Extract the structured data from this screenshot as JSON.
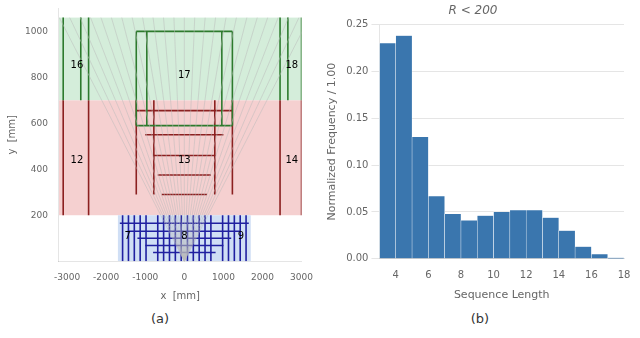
{
  "chart_data": [
    {
      "type": "line",
      "xlabel": "x  [mm]",
      "ylabel": "y  [mm]",
      "caption": "(a)",
      "xlim": [
        -3210,
        3000
      ],
      "ylim": [
        0,
        1100
      ],
      "xticks": [
        -3000,
        -2000,
        -1000,
        0,
        1000,
        2000,
        3000
      ],
      "yticks": [
        200,
        400,
        600,
        800,
        1000
      ],
      "grid": false,
      "regions": [
        {
          "xlim": [
            -3210,
            3000
          ],
          "ylim": [
            700,
            1060
          ],
          "color": "#d4edda"
        },
        {
          "xlim": [
            -3210,
            3000
          ],
          "ylim": [
            200,
            700
          ],
          "color": "#f5d0d0"
        },
        {
          "xlim": [
            -1700,
            1700
          ],
          "ylim": [
            0,
            200
          ],
          "color": "#d0dff5"
        }
      ],
      "series": [
        {
          "color": "#bbbbbb",
          "line_style": "thin",
          "segments": [
            {
              "x": [
                0,
                -3200
              ],
              "y": [
                0,
                1060
              ]
            },
            {
              "x": [
                0,
                -2933.333333333333
              ],
              "y": [
                0,
                1060
              ]
            },
            {
              "x": [
                0,
                -2666.6666666666665
              ],
              "y": [
                0,
                1060
              ]
            },
            {
              "x": [
                0,
                -2400
              ],
              "y": [
                0,
                1060
              ]
            },
            {
              "x": [
                0,
                -2133.3333333333335
              ],
              "y": [
                0,
                1060
              ]
            },
            {
              "x": [
                0,
                -1866.6666666666667
              ],
              "y": [
                0,
                1060
              ]
            },
            {
              "x": [
                0,
                -1600
              ],
              "y": [
                0,
                1060
              ]
            },
            {
              "x": [
                0,
                -1333.3333333333333
              ],
              "y": [
                0,
                1060
              ]
            },
            {
              "x": [
                0,
                -1066.6666666666667
              ],
              "y": [
                0,
                1060
              ]
            },
            {
              "x": [
                0,
                -800
              ],
              "y": [
                0,
                1060
              ]
            },
            {
              "x": [
                0,
                -533.3333333333334
              ],
              "y": [
                0,
                1060
              ]
            },
            {
              "x": [
                0,
                -266.6666666666667
              ],
              "y": [
                0,
                1060
              ]
            },
            {
              "x": [
                0,
                0
              ],
              "y": [
                0,
                1060
              ]
            },
            {
              "x": [
                0,
                266.6666666666667
              ],
              "y": [
                0,
                1060
              ]
            },
            {
              "x": [
                0,
                533.3333333333334
              ],
              "y": [
                0,
                1060
              ]
            },
            {
              "x": [
                0,
                800
              ],
              "y": [
                0,
                1060
              ]
            },
            {
              "x": [
                0,
                1066.6666666666667
              ],
              "y": [
                0,
                1060
              ]
            },
            {
              "x": [
                0,
                1333.3333333333333
              ],
              "y": [
                0,
                1060
              ]
            },
            {
              "x": [
                0,
                1600
              ],
              "y": [
                0,
                1060
              ]
            },
            {
              "x": [
                0,
                1866.6666666666667
              ],
              "y": [
                0,
                1060
              ]
            },
            {
              "x": [
                0,
                2133.3333333333335
              ],
              "y": [
                0,
                1060
              ]
            },
            {
              "x": [
                0,
                2400
              ],
              "y": [
                0,
                1060
              ]
            },
            {
              "x": [
                0,
                2666.6666666666665
              ],
              "y": [
                0,
                1060
              ]
            },
            {
              "x": [
                0,
                2933.333333333333
              ],
              "y": [
                0,
                1060
              ]
            },
            {
              "x": [
                0,
                3200
              ],
              "y": [
                0,
                1060
              ]
            }
          ]
        },
        {
          "color": "#2d7a2d",
          "line_style": "solid",
          "segments": [
            {
              "x": [
                -3100,
                -3100
              ],
              "y": [
                700,
                1060
              ]
            },
            {
              "x": [
                -2650,
                -2650
              ],
              "y": [
                700,
                1060
              ]
            },
            {
              "x": [
                -2450,
                -2450
              ],
              "y": [
                700,
                1060
              ]
            },
            {
              "x": [
                -1230,
                -1230
              ],
              "y": [
                590,
                1000
              ]
            },
            {
              "x": [
                -960,
                -960
              ],
              "y": [
                590,
                1000
              ]
            },
            {
              "x": [
                960,
                960
              ],
              "y": [
                590,
                1000
              ]
            },
            {
              "x": [
                1230,
                1230
              ],
              "y": [
                590,
                1000
              ]
            },
            {
              "x": [
                2450,
                2450
              ],
              "y": [
                700,
                1060
              ]
            },
            {
              "x": [
                2650,
                2650
              ],
              "y": [
                700,
                1060
              ]
            },
            {
              "x": [
                3000,
                3000
              ],
              "y": [
                700,
                1060
              ]
            },
            {
              "x": [
                -1230,
                1230
              ],
              "y": [
                1000,
                1000
              ]
            },
            {
              "x": [
                -1230,
                1230
              ],
              "y": [
                590,
                590
              ]
            }
          ]
        },
        {
          "color": "#8b2020",
          "line_style": "solid",
          "segments": [
            {
              "x": [
                -3100,
                -3100
              ],
              "y": [
                200,
                700
              ]
            },
            {
              "x": [
                -2450,
                -2450
              ],
              "y": [
                200,
                700
              ]
            },
            {
              "x": [
                -1230,
                -1230
              ],
              "y": [
                290,
                700
              ]
            },
            {
              "x": [
                -780,
                -780
              ],
              "y": [
                290,
                700
              ]
            },
            {
              "x": [
                780,
                780
              ],
              "y": [
                290,
                700
              ]
            },
            {
              "x": [
                1230,
                1230
              ],
              "y": [
                290,
                700
              ]
            },
            {
              "x": [
                2450,
                2450
              ],
              "y": [
                200,
                700
              ]
            },
            {
              "x": [
                3000,
                3000
              ],
              "y": [
                200,
                700
              ]
            },
            {
              "x": [
                -1230,
                1230
              ],
              "y": [
                655,
                655
              ]
            },
            {
              "x": [
                -1000,
                1000
              ],
              "y": [
                550,
                550
              ]
            },
            {
              "x": [
                -800,
                800
              ],
              "y": [
                460,
                460
              ]
            },
            {
              "x": [
                -680,
                680
              ],
              "y": [
                375,
                375
              ]
            },
            {
              "x": [
                -580,
                580
              ],
              "y": [
                290,
                290
              ]
            }
          ]
        },
        {
          "color": "#2020a0",
          "line_style": "solid",
          "segments": [
            {
              "x": [
                -1580,
                -1580
              ],
              "y": [
                0,
                200
              ]
            },
            {
              "x": [
                -1430,
                -1430
              ],
              "y": [
                0,
                200
              ]
            },
            {
              "x": [
                -1280,
                -1280
              ],
              "y": [
                0,
                200
              ]
            },
            {
              "x": [
                -1130,
                -1130
              ],
              "y": [
                0,
                200
              ]
            },
            {
              "x": [
                -980,
                -980
              ],
              "y": [
                0,
                200
              ]
            },
            {
              "x": [
                -680,
                -680
              ],
              "y": [
                0,
                200
              ]
            },
            {
              "x": [
                -530,
                -530
              ],
              "y": [
                0,
                200
              ]
            },
            {
              "x": [
                -380,
                -380
              ],
              "y": [
                0,
                200
              ]
            },
            {
              "x": [
                -230,
                -230
              ],
              "y": [
                0,
                200
              ]
            },
            {
              "x": [
                -80,
                -80
              ],
              "y": [
                0,
                200
              ]
            },
            {
              "x": [
                80,
                80
              ],
              "y": [
                0,
                200
              ]
            },
            {
              "x": [
                230,
                230
              ],
              "y": [
                0,
                200
              ]
            },
            {
              "x": [
                380,
                380
              ],
              "y": [
                0,
                200
              ]
            },
            {
              "x": [
                530,
                530
              ],
              "y": [
                0,
                200
              ]
            },
            {
              "x": [
                680,
                680
              ],
              "y": [
                0,
                200
              ]
            },
            {
              "x": [
                980,
                980
              ],
              "y": [
                0,
                200
              ]
            },
            {
              "x": [
                1130,
                1130
              ],
              "y": [
                0,
                200
              ]
            },
            {
              "x": [
                1280,
                1280
              ],
              "y": [
                0,
                200
              ]
            },
            {
              "x": [
                1430,
                1430
              ],
              "y": [
                0,
                200
              ]
            },
            {
              "x": [
                1580,
                1580
              ],
              "y": [
                0,
                200
              ]
            },
            {
              "x": [
                -1650,
                1650
              ],
              "y": [
                165,
                165
              ]
            },
            {
              "x": [
                -1450,
                1450
              ],
              "y": [
                130,
                130
              ]
            },
            {
              "x": [
                -1200,
                1200
              ],
              "y": [
                100,
                100
              ]
            },
            {
              "x": [
                -1000,
                1000
              ],
              "y": [
                68,
                68
              ]
            },
            {
              "x": [
                -800,
                800
              ],
              "y": [
                38,
                38
              ]
            }
          ]
        }
      ],
      "annotations": [
        {
          "x": -2750,
          "y": 850,
          "text": "16"
        },
        {
          "x": 0,
          "y": 810,
          "text": "17"
        },
        {
          "x": 2750,
          "y": 850,
          "text": "18"
        },
        {
          "x": -2750,
          "y": 440,
          "text": "12"
        },
        {
          "x": 0,
          "y": 440,
          "text": "13"
        },
        {
          "x": 2750,
          "y": 440,
          "text": "14"
        },
        {
          "x": -1450,
          "y": 110,
          "text": "7"
        },
        {
          "x": 0,
          "y": 110,
          "text": "8"
        },
        {
          "x": 1450,
          "y": 110,
          "text": "9"
        }
      ]
    },
    {
      "type": "histogram",
      "title": "R < 200",
      "xlabel": "Sequence Length",
      "ylabel": "Normalized Frequency / 1.00",
      "caption": "(b)",
      "bins": [
        3,
        4,
        5,
        6,
        7,
        8,
        9,
        10,
        11,
        12,
        13,
        14,
        15,
        16,
        17,
        18
      ],
      "values": [
        0.23,
        0.238,
        0.13,
        0.067,
        0.048,
        0.041,
        0.046,
        0.05,
        0.052,
        0.052,
        0.044,
        0.03,
        0.013,
        0.005,
        0.001
      ],
      "color": "#3a76ae",
      "xlim": [
        3,
        18
      ],
      "ylim": [
        0,
        0.25
      ],
      "xticks": [
        4,
        6,
        8,
        10,
        12,
        14,
        16,
        18
      ],
      "yticks": [
        {
          "value": 0.0,
          "label": "0.00"
        },
        {
          "value": 0.05,
          "label": "0.05"
        },
        {
          "value": 0.1,
          "label": "0.10"
        },
        {
          "value": 0.15,
          "label": "0.15"
        },
        {
          "value": 0.2,
          "label": "0.20"
        },
        {
          "value": 0.25,
          "label": "0.25"
        }
      ],
      "grid": "y"
    }
  ]
}
